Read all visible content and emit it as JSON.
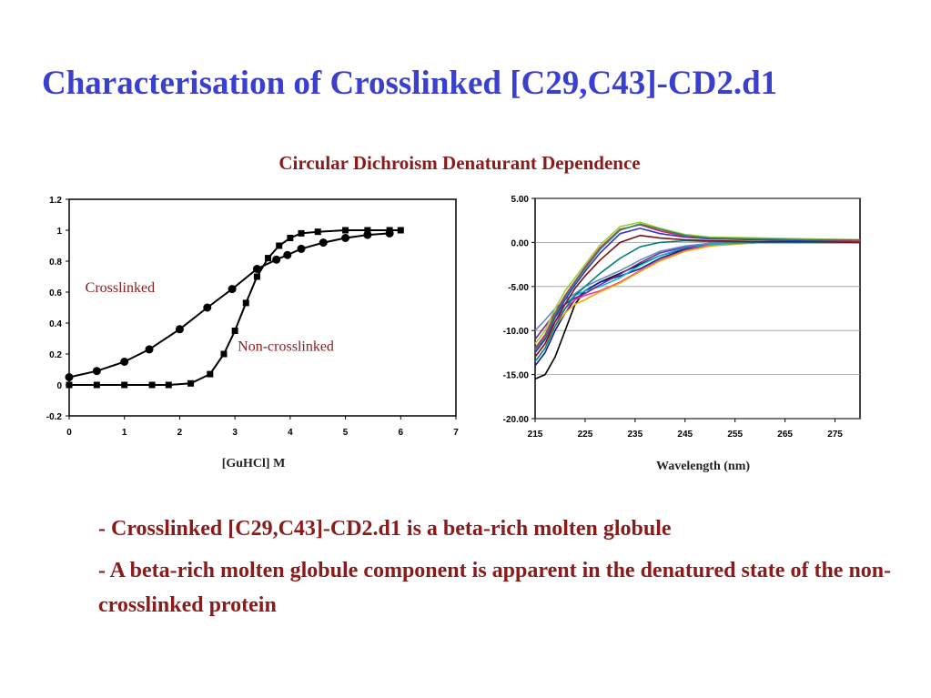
{
  "slide": {
    "title": "Characterisation of Crosslinked [C29,C43]-CD2.d1",
    "heading": "Circular Dichroism Denaturant Dependence",
    "bullets": [
      "- Crosslinked [C29,C43]-CD2.d1 is a beta-rich molten globule",
      "- A beta-rich molten globule component is apparent in the denatured state of the non-crosslinked protein"
    ]
  },
  "chart_data": [
    {
      "type": "line",
      "xlabel": "[GuHCl] M",
      "ylabel": "",
      "xlim": [
        0,
        7
      ],
      "ylim": [
        -0.2,
        1.2
      ],
      "xticks": [
        "0",
        "1",
        "2",
        "3",
        "4",
        "5",
        "6",
        "7"
      ],
      "yticks": [
        "-0.2",
        "0",
        "0.2",
        "0.4",
        "0.6",
        "0.8",
        "1",
        "1.2"
      ],
      "series": [
        {
          "name": "Crosslinked",
          "marker": "circle",
          "color": "#000000",
          "x": [
            0,
            0.5,
            1.0,
            1.45,
            2.0,
            2.5,
            2.95,
            3.4,
            3.75,
            3.95,
            4.2,
            4.6,
            5.0,
            5.4,
            5.8
          ],
          "y": [
            0.05,
            0.09,
            0.15,
            0.23,
            0.36,
            0.5,
            0.62,
            0.75,
            0.81,
            0.84,
            0.88,
            0.92,
            0.95,
            0.97,
            0.98
          ]
        },
        {
          "name": "Non-crosslinked",
          "marker": "square",
          "color": "#000000",
          "x": [
            0,
            0.5,
            1.0,
            1.5,
            1.8,
            2.2,
            2.55,
            2.8,
            3.0,
            3.2,
            3.4,
            3.6,
            3.8,
            4.0,
            4.2,
            4.5,
            5.0,
            5.4,
            5.8,
            6.0
          ],
          "y": [
            0,
            0,
            0,
            0,
            0,
            0.01,
            0.07,
            0.2,
            0.35,
            0.53,
            0.7,
            0.82,
            0.9,
            0.95,
            0.98,
            0.99,
            1.0,
            1.0,
            1.0,
            1.0
          ]
        }
      ],
      "annotations": [
        {
          "text": "Crosslinked",
          "x": 1.55,
          "y": 0.6,
          "anchor": "end"
        },
        {
          "text": "Non-crosslinked",
          "x": 3.05,
          "y": 0.22,
          "anchor": "start"
        }
      ]
    },
    {
      "type": "line",
      "xlabel": "Wavelength (nm)",
      "ylabel": "",
      "xlim": [
        215,
        280
      ],
      "ylim": [
        -20,
        5
      ],
      "xticks": [
        "215",
        "225",
        "235",
        "245",
        "255",
        "265",
        "275"
      ],
      "yticks": [
        "5.00",
        "0.00",
        "-5.00",
        "-10.00",
        "-15.00",
        "-20.00"
      ],
      "grid": true,
      "series": [
        {
          "color": "#000000",
          "x": [
            215,
            217,
            219,
            221,
            223,
            225,
            228,
            232,
            236,
            240,
            245,
            250,
            260,
            270,
            280
          ],
          "y": [
            -15.5,
            -15,
            -13,
            -10,
            -7,
            -5.5,
            -4.5,
            -3.5,
            -2.5,
            -1.5,
            -0.7,
            -0.3,
            0,
            0,
            0
          ]
        },
        {
          "color": "#1a1aa0",
          "x": [
            215,
            217,
            219,
            221,
            223,
            225,
            228,
            232,
            236,
            240,
            245,
            250,
            260,
            270,
            280
          ],
          "y": [
            -14,
            -12.5,
            -10,
            -8,
            -6.5,
            -5.5,
            -4.5,
            -3.8,
            -3.0,
            -1.8,
            -0.8,
            -0.3,
            0,
            0,
            0
          ]
        },
        {
          "color": "#e6399b",
          "x": [
            215,
            217,
            219,
            221,
            223,
            225,
            228,
            232,
            236,
            240,
            245,
            250,
            260,
            270,
            280
          ],
          "y": [
            -12.5,
            -11,
            -9,
            -7.5,
            -6.5,
            -6,
            -5.5,
            -4.5,
            -3.2,
            -2,
            -0.9,
            -0.3,
            0,
            0,
            0
          ]
        },
        {
          "color": "#f2a500",
          "x": [
            215,
            217,
            219,
            221,
            223,
            225,
            228,
            232,
            236,
            240,
            245,
            250,
            260,
            270,
            280
          ],
          "y": [
            -13,
            -11.5,
            -9.5,
            -8,
            -7,
            -6.5,
            -5.6,
            -4.6,
            -3.3,
            -2.1,
            -1.0,
            -0.4,
            0,
            0,
            0
          ]
        },
        {
          "color": "#00bcd4",
          "x": [
            215,
            217,
            219,
            221,
            223,
            225,
            228,
            232,
            236,
            240,
            245,
            250,
            260,
            270,
            280
          ],
          "y": [
            -12,
            -10.5,
            -8.5,
            -7,
            -6,
            -5.5,
            -5,
            -4,
            -2.6,
            -1.5,
            -0.6,
            -0.2,
            0,
            0,
            0
          ]
        },
        {
          "color": "#7a2a8f",
          "x": [
            215,
            217,
            219,
            221,
            223,
            225,
            228,
            232,
            236,
            240,
            245,
            250,
            260,
            270,
            280
          ],
          "y": [
            -11,
            -9.5,
            -8,
            -7,
            -6.3,
            -5.8,
            -4.8,
            -3.6,
            -2.3,
            -1.2,
            -0.5,
            -0.1,
            0,
            0,
            0
          ]
        },
        {
          "color": "#6688cc",
          "x": [
            215,
            217,
            219,
            221,
            223,
            225,
            228,
            232,
            236,
            240,
            245,
            250,
            260,
            270,
            280
          ],
          "y": [
            -10,
            -8.8,
            -7.5,
            -6.5,
            -5.8,
            -5,
            -4.2,
            -3.2,
            -2,
            -1,
            -0.4,
            -0.1,
            0,
            0,
            0
          ]
        },
        {
          "color": "#008080",
          "x": [
            215,
            217,
            219,
            221,
            223,
            225,
            228,
            232,
            236,
            240,
            245,
            250,
            260,
            270,
            280
          ],
          "y": [
            -13.5,
            -12,
            -9.5,
            -7.5,
            -6,
            -5,
            -3.5,
            -1.8,
            -0.5,
            0,
            0.2,
            0.1,
            0,
            0,
            0
          ]
        },
        {
          "color": "#7a1010",
          "x": [
            215,
            217,
            219,
            221,
            223,
            225,
            228,
            232,
            236,
            240,
            245,
            250,
            260,
            270,
            280
          ],
          "y": [
            -13,
            -11.5,
            -9,
            -7,
            -5.2,
            -3.8,
            -2,
            0,
            0.8,
            0.5,
            0.3,
            0.2,
            0.1,
            0.1,
            0
          ]
        },
        {
          "color": "#3333cc",
          "x": [
            215,
            217,
            219,
            221,
            223,
            225,
            228,
            232,
            236,
            240,
            245,
            250,
            260,
            270,
            280
          ],
          "y": [
            -12.5,
            -11,
            -8.5,
            -6.5,
            -4.8,
            -3.3,
            -1.2,
            1.0,
            1.6,
            1.0,
            0.6,
            0.4,
            0.3,
            0.2,
            0.1
          ]
        },
        {
          "color": "#d6226e",
          "x": [
            215,
            217,
            219,
            221,
            223,
            225,
            228,
            232,
            236,
            240,
            245,
            250,
            260,
            270,
            280
          ],
          "y": [
            -12,
            -10.5,
            -8,
            -6,
            -4.4,
            -2.8,
            -0.6,
            1.5,
            2.0,
            1.3,
            0.7,
            0.5,
            0.4,
            0.3,
            0.2
          ]
        },
        {
          "color": "#9acd32",
          "x": [
            215,
            217,
            219,
            221,
            223,
            225,
            228,
            232,
            236,
            240,
            245,
            250,
            260,
            270,
            280
          ],
          "y": [
            -11.5,
            -10,
            -7.5,
            -5.5,
            -4,
            -2.5,
            -0.3,
            1.8,
            2.3,
            1.6,
            0.9,
            0.6,
            0.5,
            0.4,
            0.3
          ]
        },
        {
          "color": "#2e8b57",
          "x": [
            215,
            217,
            219,
            221,
            223,
            225,
            228,
            232,
            236,
            240,
            245,
            250,
            260,
            270,
            280
          ],
          "y": [
            -12.2,
            -10.8,
            -8.2,
            -6.2,
            -4.5,
            -3.0,
            -0.8,
            1.4,
            2.1,
            1.5,
            0.8,
            0.5,
            0.4,
            0.3,
            0.3
          ]
        }
      ]
    }
  ]
}
